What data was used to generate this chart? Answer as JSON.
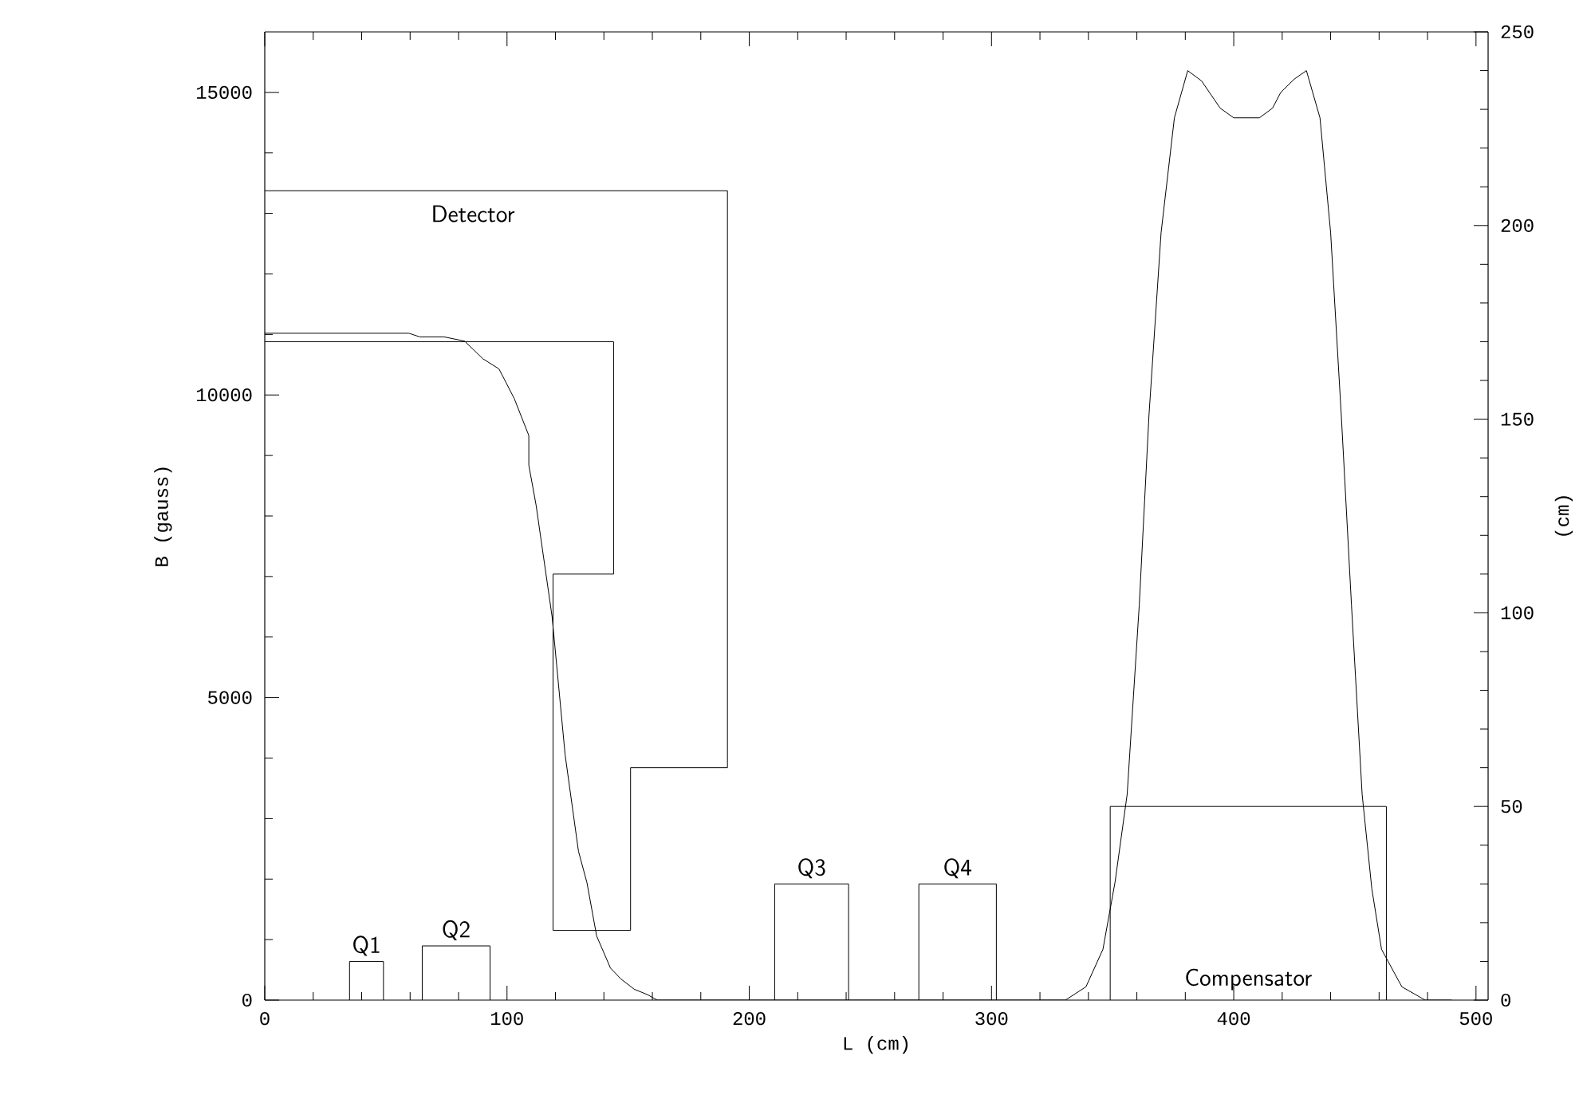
{
  "chart_data": {
    "type": "line",
    "xlabel": "L (cm)",
    "ylabel": "B (gauss)",
    "y2label": "(cm)",
    "xlim": [
      0,
      505
    ],
    "xticks": [
      0,
      100,
      200,
      300,
      400,
      500
    ],
    "ylim": [
      0,
      16000
    ],
    "yticks": [
      0,
      5000,
      10000,
      15000
    ],
    "y2lim": [
      0,
      250
    ],
    "y2ticks": [
      0,
      50,
      100,
      150,
      200,
      250
    ],
    "series": [
      {
        "color": "#000000",
        "x": [
          0,
          59.5,
          64,
          74,
          82.5,
          90,
          96.7,
          103,
          109,
          109,
          112,
          118.6,
          124,
          129.5,
          133,
          137,
          142.7,
          147,
          152.5,
          158,
          162,
          330.5,
          339,
          346,
          351,
          356,
          361,
          365,
          370,
          375.5,
          381,
          386.7,
          394.4,
          400,
          410.6,
          416,
          419.4,
          425,
          430,
          435.6,
          440,
          444.4,
          448.6,
          453,
          457,
          461,
          469.4,
          479,
          490
        ],
        "values": [
          11020,
          11020,
          10960,
          10960,
          10890,
          10600,
          10430,
          9940,
          9330,
          8840,
          8180,
          6340,
          4050,
          2460,
          1940,
          1060,
          530,
          350,
          180,
          90,
          0,
          0,
          220,
          840,
          1950,
          3400,
          6530,
          9660,
          12680,
          14580,
          15360,
          15190,
          14740,
          14580,
          14580,
          14740,
          15000,
          15220,
          15360,
          14580,
          12680,
          9660,
          6530,
          3400,
          1840,
          840,
          220,
          0,
          0
        ]
      },
      {
        "color": "#000000",
        "axis": "y2",
        "x": [
          0,
          144,
          144,
          119,
          119,
          151,
          151,
          191,
          191,
          0
        ],
        "values": [
          170,
          170,
          110,
          110,
          18,
          18,
          60,
          60,
          209,
          209
        ]
      },
      {
        "color": "#000000",
        "axis": "y2",
        "x": [
          35,
          35,
          49,
          49
        ],
        "values": [
          0,
          10,
          10,
          0
        ]
      },
      {
        "color": "#000000",
        "axis": "y2",
        "x": [
          65,
          65,
          93,
          93
        ],
        "values": [
          0,
          14,
          14,
          0
        ]
      },
      {
        "color": "#000000",
        "axis": "y2",
        "x": [
          210.5,
          210.5,
          241,
          241
        ],
        "values": [
          0,
          30,
          30,
          0
        ]
      },
      {
        "color": "#000000",
        "axis": "y2",
        "x": [
          270,
          270,
          302,
          302
        ],
        "values": [
          0,
          30,
          30,
          0
        ]
      },
      {
        "color": "#000000",
        "axis": "y2",
        "x": [
          349,
          349,
          463,
          463
        ],
        "values": [
          0,
          50,
          50,
          0
        ]
      }
    ],
    "annotations": [
      "Detector",
      "Q1",
      "Q2",
      "Q3",
      "Q4",
      "Compensator"
    ]
  }
}
